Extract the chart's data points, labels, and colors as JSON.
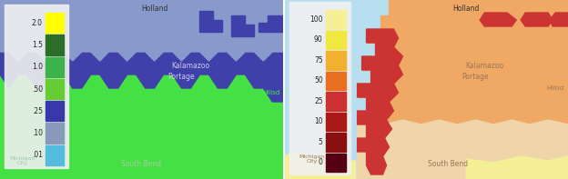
{
  "figsize": [
    6.24,
    1.97
  ],
  "dpi": 100,
  "left": {
    "bg": "#7aadcf",
    "green": "#44e044",
    "dark_blue": "#4040aa",
    "light_blue": "#8899cc",
    "cb_bg": "#f0f0f0",
    "cb_labels": [
      "2.0",
      "1.5",
      "1.0",
      ".50",
      ".25",
      ".10",
      ".01"
    ],
    "cb_colors": [
      "#ffff00",
      "#2a6e2a",
      "#3cb34a",
      "#66cc33",
      "#3838aa",
      "#8899bb",
      "#55bbdd",
      "#aaaaaa"
    ]
  },
  "right": {
    "bg": "#b8dff0",
    "orange_dark": "#e8874a",
    "orange_med": "#f0a865",
    "orange_light": "#f5c896",
    "peach": "#f0d4aa",
    "yellow": "#f5f095",
    "red": "#cc3333",
    "cb_bg": "#f0f0f0",
    "cb_labels": [
      "100",
      "90",
      "75",
      "50",
      "25",
      "10",
      "5",
      "0"
    ],
    "cb_colors": [
      "#f5f095",
      "#f0e840",
      "#f0b030",
      "#e87020",
      "#cc3030",
      "#aa1818",
      "#881010",
      "#550010"
    ]
  }
}
